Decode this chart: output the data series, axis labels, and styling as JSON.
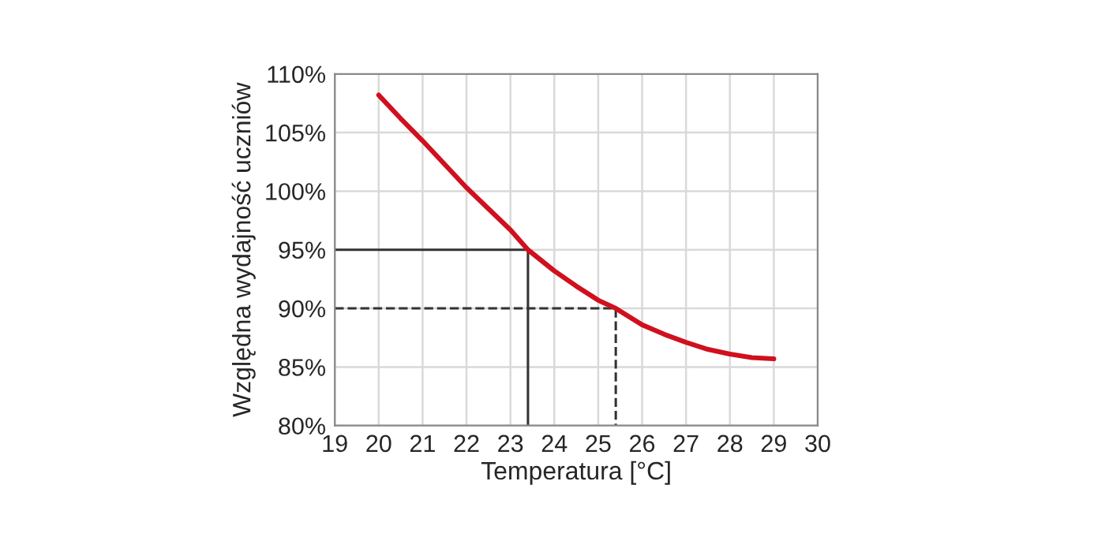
{
  "chart_data": {
    "type": "line",
    "xlabel": "Temperatura [°C]",
    "ylabel": "Względna wydajność uczniów",
    "series": [
      {
        "color": "#d0101e",
        "x": [
          20,
          20.5,
          21,
          21.5,
          22,
          22.5,
          23,
          23.4,
          24,
          24.5,
          25,
          25.4,
          26,
          26.5,
          27,
          27.5,
          28,
          28.5,
          29
        ],
        "values": [
          108.2,
          106.2,
          104.3,
          102.3,
          100.3,
          98.5,
          96.7,
          95,
          93.2,
          91.9,
          90.7,
          90,
          88.6,
          87.8,
          87.1,
          86.5,
          86.1,
          85.8,
          85.7
        ]
      },
      {
        "color": "#333333",
        "line_style": "solid",
        "x": [
          19,
          23.4,
          23.4
        ],
        "values": [
          95,
          95,
          80
        ]
      },
      {
        "color": "#333333",
        "line_style": "dashed",
        "x": [
          19,
          25.4,
          25.4
        ],
        "values": [
          90,
          90,
          80
        ]
      }
    ],
    "xlim": [
      19,
      30
    ],
    "xticks": [
      19,
      20,
      21,
      22,
      23,
      24,
      25,
      26,
      27,
      28,
      29,
      30
    ],
    "ylim": [
      80,
      110
    ],
    "yticks": [
      {
        "value": 80,
        "label": "80%"
      },
      {
        "value": 85,
        "label": "85%"
      },
      {
        "value": 90,
        "label": "90%"
      },
      {
        "value": 95,
        "label": "95%"
      },
      {
        "value": 100,
        "label": "100%"
      },
      {
        "value": 105,
        "label": "105%"
      },
      {
        "value": 110,
        "label": "110%"
      }
    ],
    "grid": true,
    "line_style": "solid"
  }
}
